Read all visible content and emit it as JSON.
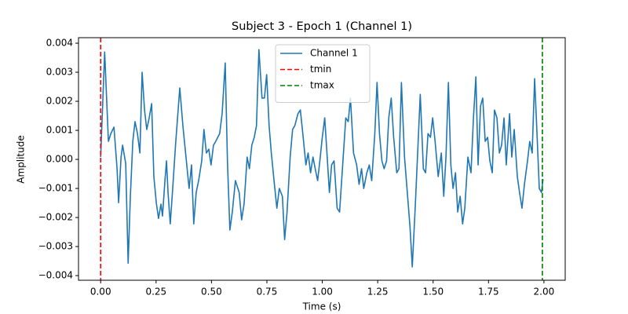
{
  "chart_data": {
    "type": "line",
    "title": "Subject 3 - Epoch 1 (Channel 1)",
    "x_label": "Time (s)",
    "y_label": "Amplitude",
    "xlim": [
      -0.1,
      2.096
    ],
    "ylim": [
      -0.00416,
      0.00419
    ],
    "xticks": [
      {
        "value": 0,
        "label": "0.00"
      },
      {
        "value": 0.25,
        "label": "0.25"
      },
      {
        "value": 0.5,
        "label": "0.50"
      },
      {
        "value": 0.75,
        "label": "0.75"
      },
      {
        "value": 1,
        "label": "1.00"
      },
      {
        "value": 1.25,
        "label": "1.25"
      },
      {
        "value": 1.5,
        "label": "1.50"
      },
      {
        "value": 1.75,
        "label": "1.75"
      },
      {
        "value": 2,
        "label": "2.00"
      }
    ],
    "yticks": [
      {
        "value": -0.004,
        "label": "−0.004"
      },
      {
        "value": -0.003,
        "label": "−0.003"
      },
      {
        "value": -0.002,
        "label": "−0.002"
      },
      {
        "value": -0.001,
        "label": "−0.001"
      },
      {
        "value": 0,
        "label": "0.000"
      },
      {
        "value": 0.001,
        "label": "0.001"
      },
      {
        "value": 0.002,
        "label": "0.002"
      },
      {
        "value": 0.003,
        "label": "0.003"
      },
      {
        "value": 0.004,
        "label": "0.004"
      }
    ],
    "legend": "upper center",
    "x": [
      0,
      0.018,
      0.035,
      0.046,
      0.06,
      0.074,
      0.081,
      0.092,
      0.099,
      0.113,
      0.124,
      0.134,
      0.145,
      0.155,
      0.166,
      0.177,
      0.187,
      0.198,
      0.208,
      0.219,
      0.23,
      0.24,
      0.251,
      0.261,
      0.272,
      0.279,
      0.29,
      0.297,
      0.304,
      0.314,
      0.325,
      0.339,
      0.357,
      0.371,
      0.385,
      0.399,
      0.41,
      0.42,
      0.431,
      0.442,
      0.456,
      0.466,
      0.477,
      0.488,
      0.498,
      0.509,
      0.519,
      0.537,
      0.548,
      0.562,
      0.572,
      0.583,
      0.594,
      0.608,
      0.625,
      0.636,
      0.647,
      0.661,
      0.671,
      0.682,
      0.693,
      0.703,
      0.714,
      0.728,
      0.739,
      0.749,
      0.76,
      0.77,
      0.784,
      0.795,
      0.806,
      0.82,
      0.83,
      0.841,
      0.855,
      0.866,
      0.876,
      0.89,
      0.901,
      0.912,
      0.926,
      0.936,
      0.947,
      0.958,
      0.968,
      0.979,
      0.989,
      1.0,
      1.011,
      1.021,
      1.032,
      1.042,
      1.053,
      1.067,
      1.078,
      1.092,
      1.106,
      1.117,
      1.127,
      1.141,
      1.155,
      1.166,
      1.177,
      1.187,
      1.201,
      1.212,
      1.223,
      1.237,
      1.247,
      1.258,
      1.269,
      1.279,
      1.29,
      1.3,
      1.311,
      1.322,
      1.336,
      1.346,
      1.357,
      1.371,
      1.385,
      1.396,
      1.406,
      1.42,
      1.431,
      1.442,
      1.456,
      1.466,
      1.477,
      1.488,
      1.498,
      1.509,
      1.523,
      1.537,
      1.548,
      1.558,
      1.569,
      1.58,
      1.59,
      1.601,
      1.611,
      1.622,
      1.633,
      1.643,
      1.657,
      1.671,
      1.682,
      1.693,
      1.703,
      1.714,
      1.724,
      1.735,
      1.746,
      1.756,
      1.767,
      1.777,
      1.788,
      1.799,
      1.809,
      1.82,
      1.83,
      1.845,
      1.855,
      1.866,
      1.88,
      1.89,
      1.901,
      1.912,
      1.926,
      1.936,
      1.947,
      1.958,
      1.968,
      1.979,
      1.989,
      1.996
    ],
    "series": [
      {
        "name": "Channel 1",
        "color": "#1f77b4",
        "values": [
          8e-05,
          0.0037,
          0.00062,
          0.00089,
          0.00111,
          -0.00032,
          -0.00149,
          8e-05,
          0.00049,
          -0.00014,
          -0.00357,
          -0.00127,
          0.00062,
          0.0013,
          0.00089,
          0.00022,
          0.003,
          0.0017,
          0.00103,
          0.00143,
          0.00192,
          -0.00059,
          -0.00149,
          -0.00203,
          -0.00154,
          -0.00195,
          -0.00073,
          -5e-05,
          -0.00114,
          -0.00222,
          -0.001,
          0.00062,
          0.00246,
          0.00116,
          8e-05,
          -0.001,
          -0.00019,
          -0.00222,
          -0.00114,
          -0.00073,
          -5e-05,
          0.00103,
          0.00022,
          0.00035,
          -0.00019,
          0.00049,
          0.00062,
          0.00089,
          0.00157,
          0.00332,
          -5e-05,
          -0.00243,
          -0.00181,
          -0.00073,
          -0.00114,
          -0.00208,
          -0.00154,
          8e-05,
          -0.00032,
          0.00049,
          0.00076,
          0.00116,
          0.00378,
          0.00211,
          0.00211,
          0.00292,
          0.00116,
          0.00022,
          -0.00086,
          -0.00168,
          -0.001,
          -0.00127,
          -0.00276,
          -0.00181,
          8e-05,
          0.00103,
          0.00116,
          0.00157,
          0.0017,
          0.00089,
          -0.00019,
          0.00022,
          -0.00046,
          8e-05,
          -0.00032,
          -0.00073,
          -5e-05,
          0.00076,
          0.00143,
          0.00022,
          -0.00114,
          -0.00019,
          -5e-05,
          -0.00168,
          -0.00181,
          -0.00019,
          0.00143,
          0.0013,
          0.00211,
          0.00022,
          -0.00019,
          -0.00086,
          -0.00032,
          -0.001,
          -0.00046,
          -0.00019,
          -0.00073,
          0.00089,
          0.00265,
          0.00089,
          -5e-05,
          -0.00032,
          -5e-05,
          0.00143,
          0.00211,
          0.00076,
          -0.00046,
          -0.00032,
          0.00265,
          8e-05,
          -0.00127,
          -0.00235,
          -0.0037,
          -0.00154,
          0.00035,
          0.00224,
          -0.00032,
          -0.00046,
          0.00089,
          0.00076,
          0.00143,
          0.00062,
          -0.00059,
          0.00022,
          -0.00127,
          8e-05,
          0.00265,
          -0.00019,
          -0.001,
          -0.00046,
          -0.00181,
          -0.00127,
          -0.00222,
          -0.00168,
          8e-05,
          -0.00046,
          0.00143,
          0.00284,
          -0.00019,
          0.00184,
          0.00211,
          0.00062,
          0.00076,
          -5e-05,
          -0.00046,
          0.0017,
          0.00143,
          0.00022,
          0.00049,
          0.00143,
          -0.00019,
          0.00157,
          8e-05,
          0.00103,
          -0.00059,
          -0.00114,
          -0.00168,
          -0.00086,
          -5e-05,
          0.00062,
          0.00022,
          0.00278,
          0.00103,
          -0.001,
          -0.00114,
          -0.00068
        ]
      }
    ],
    "vlines": [
      {
        "name": "tmin",
        "x": 0,
        "color": "red"
      },
      {
        "name": "tmax",
        "x": 1.993,
        "color": "green"
      }
    ]
  }
}
